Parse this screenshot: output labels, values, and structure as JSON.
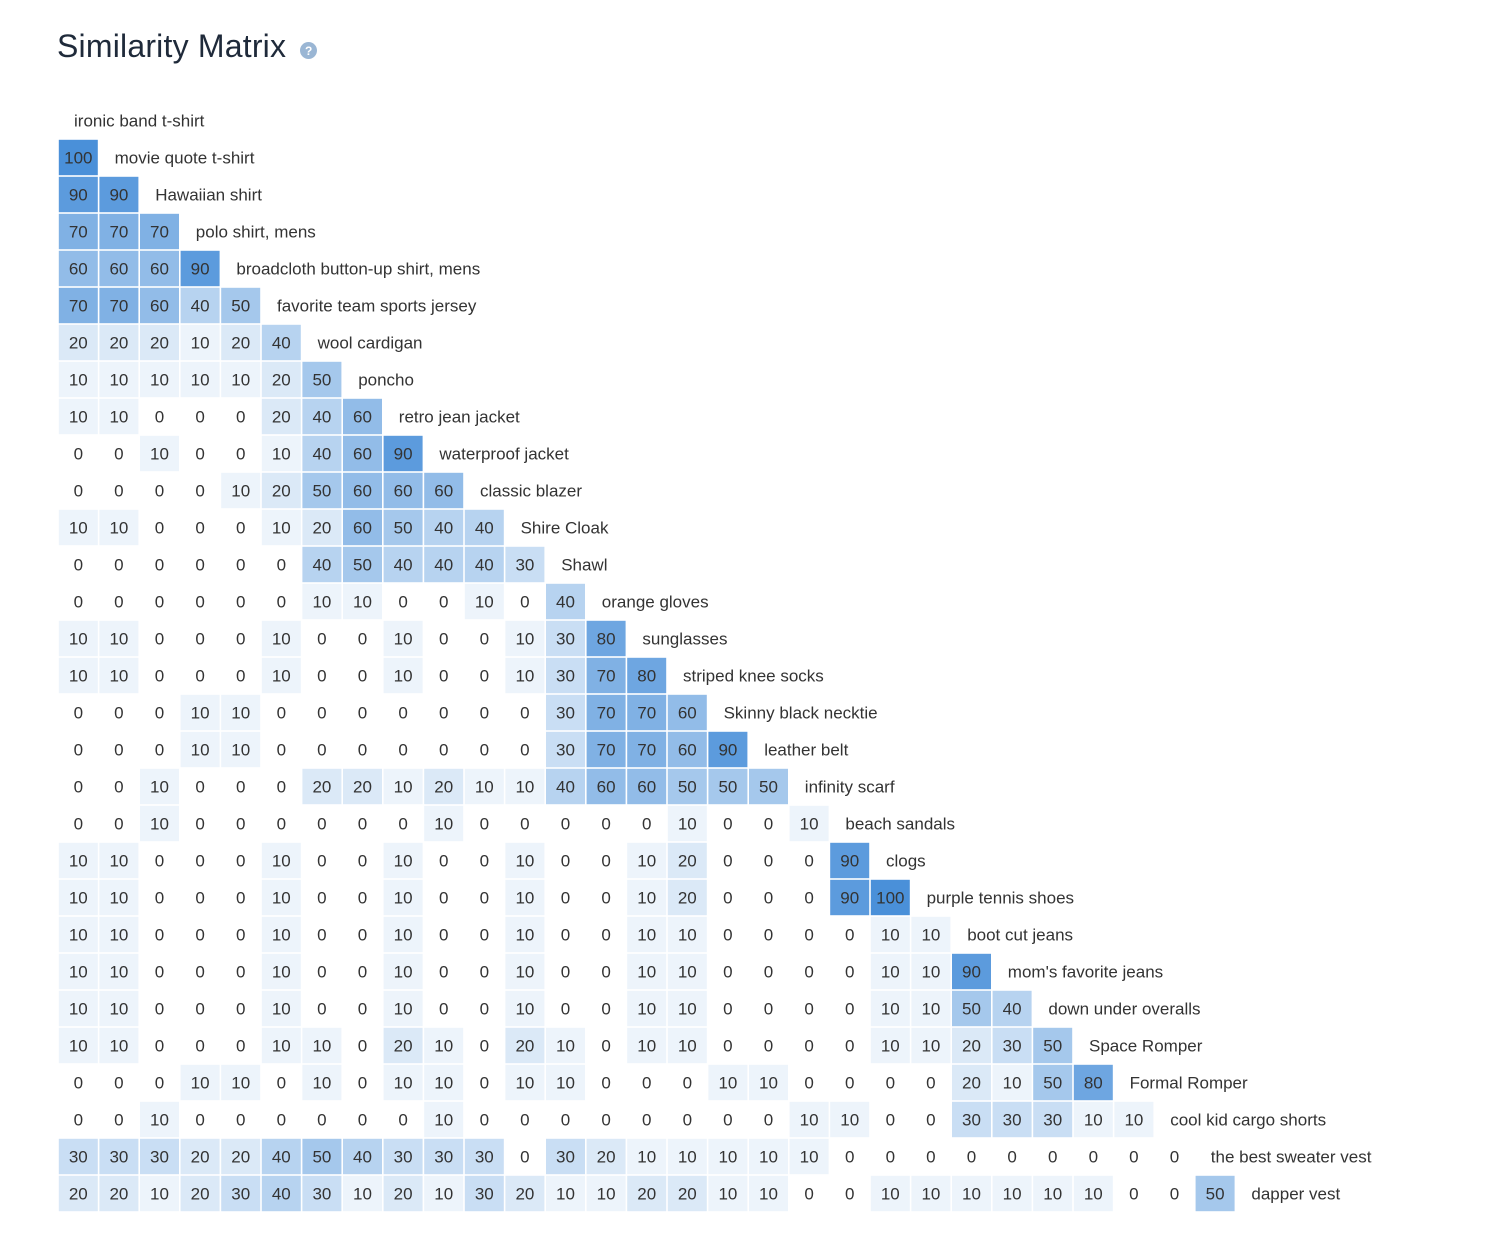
{
  "title": "Similarity Matrix",
  "help_icon": "question-icon",
  "colors": {
    "low": "#ffffff",
    "high": "#4a90d9",
    "grid": "#ffffff",
    "text": "#333333",
    "label": "#333333"
  },
  "chart_data": {
    "type": "heatmap",
    "title": "Similarity Matrix",
    "shape": "lower-triangular",
    "range": [
      0,
      100
    ],
    "labels": [
      "ironic band t-shirt",
      "movie quote t-shirt",
      "Hawaiian shirt",
      "polo shirt, mens",
      "broadcloth button-up shirt, mens",
      "favorite team sports jersey",
      "wool cardigan",
      "poncho",
      "retro jean jacket",
      "waterproof jacket",
      "classic blazer",
      "Shire Cloak",
      "Shawl",
      "orange gloves",
      "sunglasses",
      "striped knee socks",
      "Skinny black necktie",
      "leather belt",
      "infinity scarf",
      "beach sandals",
      "clogs",
      "purple tennis shoes",
      "boot cut jeans",
      "mom's favorite jeans",
      "down under overalls",
      "Space Romper",
      "Formal Romper",
      "cool kid cargo shorts",
      "the best sweater vest",
      "dapper vest"
    ],
    "values": [
      [],
      [
        100
      ],
      [
        90,
        90
      ],
      [
        70,
        70,
        70
      ],
      [
        60,
        60,
        60,
        90
      ],
      [
        70,
        70,
        60,
        40,
        50
      ],
      [
        20,
        20,
        20,
        10,
        20,
        40
      ],
      [
        10,
        10,
        10,
        10,
        10,
        20,
        50
      ],
      [
        10,
        10,
        0,
        0,
        0,
        20,
        40,
        60
      ],
      [
        0,
        0,
        10,
        0,
        0,
        10,
        40,
        60,
        90
      ],
      [
        0,
        0,
        0,
        0,
        10,
        20,
        50,
        60,
        60,
        60
      ],
      [
        10,
        10,
        0,
        0,
        0,
        10,
        20,
        60,
        50,
        40,
        40
      ],
      [
        0,
        0,
        0,
        0,
        0,
        0,
        40,
        50,
        40,
        40,
        40,
        30
      ],
      [
        0,
        0,
        0,
        0,
        0,
        0,
        10,
        10,
        0,
        0,
        10,
        0,
        40
      ],
      [
        10,
        10,
        0,
        0,
        0,
        10,
        0,
        0,
        10,
        0,
        0,
        10,
        30,
        80
      ],
      [
        10,
        10,
        0,
        0,
        0,
        10,
        0,
        0,
        10,
        0,
        0,
        10,
        30,
        70,
        80
      ],
      [
        0,
        0,
        0,
        10,
        10,
        0,
        0,
        0,
        0,
        0,
        0,
        0,
        30,
        70,
        70,
        60
      ],
      [
        0,
        0,
        0,
        10,
        10,
        0,
        0,
        0,
        0,
        0,
        0,
        0,
        30,
        70,
        70,
        60,
        90
      ],
      [
        0,
        0,
        10,
        0,
        0,
        0,
        20,
        20,
        10,
        20,
        10,
        10,
        40,
        60,
        60,
        50,
        50,
        50
      ],
      [
        0,
        0,
        10,
        0,
        0,
        0,
        0,
        0,
        0,
        10,
        0,
        0,
        0,
        0,
        0,
        10,
        0,
        0,
        10
      ],
      [
        10,
        10,
        0,
        0,
        0,
        10,
        0,
        0,
        10,
        0,
        0,
        10,
        0,
        0,
        10,
        20,
        0,
        0,
        0,
        90
      ],
      [
        10,
        10,
        0,
        0,
        0,
        10,
        0,
        0,
        10,
        0,
        0,
        10,
        0,
        0,
        10,
        20,
        0,
        0,
        0,
        90,
        100
      ],
      [
        10,
        10,
        0,
        0,
        0,
        10,
        0,
        0,
        10,
        0,
        0,
        10,
        0,
        0,
        10,
        10,
        0,
        0,
        0,
        0,
        10,
        10
      ],
      [
        10,
        10,
        0,
        0,
        0,
        10,
        0,
        0,
        10,
        0,
        0,
        10,
        0,
        0,
        10,
        10,
        0,
        0,
        0,
        0,
        10,
        10,
        90
      ],
      [
        10,
        10,
        0,
        0,
        0,
        10,
        0,
        0,
        10,
        0,
        0,
        10,
        0,
        0,
        10,
        10,
        0,
        0,
        0,
        0,
        10,
        10,
        50,
        40
      ],
      [
        10,
        10,
        0,
        0,
        0,
        10,
        10,
        0,
        20,
        10,
        0,
        20,
        10,
        0,
        10,
        10,
        0,
        0,
        0,
        0,
        10,
        10,
        20,
        30,
        50
      ],
      [
        0,
        0,
        0,
        10,
        10,
        0,
        10,
        0,
        10,
        10,
        0,
        10,
        10,
        0,
        0,
        0,
        10,
        10,
        0,
        0,
        0,
        0,
        20,
        10,
        50,
        80
      ],
      [
        0,
        0,
        10,
        0,
        0,
        0,
        0,
        0,
        0,
        10,
        0,
        0,
        0,
        0,
        0,
        0,
        0,
        0,
        10,
        10,
        0,
        0,
        30,
        30,
        30,
        10,
        10
      ],
      [
        30,
        30,
        30,
        20,
        20,
        40,
        50,
        40,
        30,
        30,
        30,
        0,
        30,
        20,
        10,
        10,
        10,
        10,
        10,
        0,
        0,
        0,
        0,
        0,
        0,
        0,
        0,
        0
      ],
      [
        20,
        20,
        10,
        20,
        30,
        40,
        30,
        10,
        20,
        10,
        30,
        20,
        10,
        10,
        20,
        20,
        10,
        10,
        0,
        0,
        10,
        10,
        10,
        10,
        10,
        10,
        0,
        0,
        50
      ]
    ]
  }
}
